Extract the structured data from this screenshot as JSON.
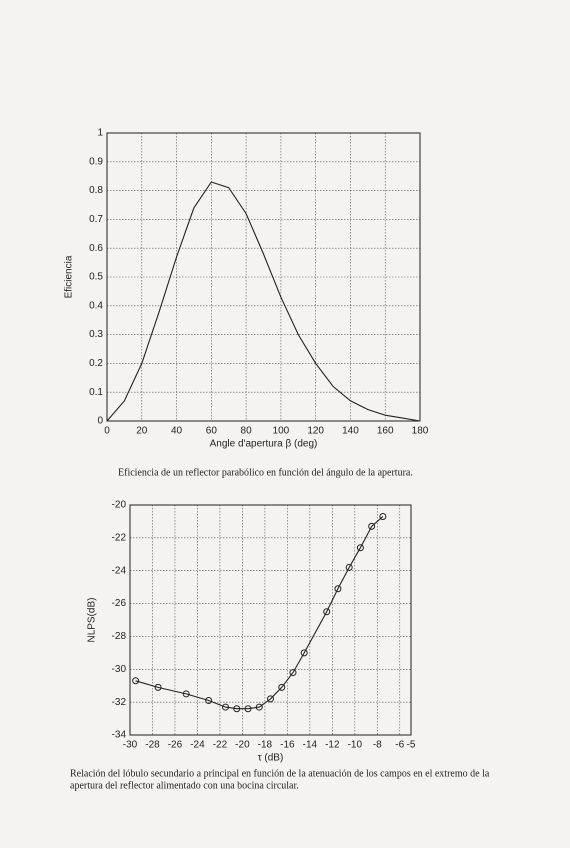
{
  "chart_data": [
    {
      "type": "line",
      "xlabel": "Angle d'apertura β (deg)",
      "ylabel": "Eficiencia",
      "x": [
        0,
        10,
        20,
        30,
        40,
        50,
        60,
        70,
        80,
        90,
        100,
        110,
        120,
        130,
        140,
        150,
        160,
        170,
        180
      ],
      "values": [
        0,
        0.07,
        0.2,
        0.38,
        0.57,
        0.74,
        0.83,
        0.81,
        0.72,
        0.58,
        0.43,
        0.3,
        0.2,
        0.12,
        0.07,
        0.04,
        0.02,
        0.01,
        0
      ],
      "color": "#222222",
      "marker": "none",
      "xlim": [
        0,
        180
      ],
      "xticks": [
        0,
        20,
        40,
        60,
        80,
        100,
        120,
        140,
        160,
        180
      ],
      "ylim": [
        0,
        1
      ],
      "yticks": [
        0,
        0.1,
        0.2,
        0.3,
        0.4,
        0.5,
        0.6,
        0.7,
        0.8,
        0.9,
        1
      ],
      "grid": true,
      "caption": [
        "Eficiencia de un reflector parabólico en función del ángulo de la apertura."
      ]
    },
    {
      "type": "line",
      "xlabel": "τ (dB)",
      "ylabel": "NLPS(dB)",
      "x": [
        -29.5,
        -27.5,
        -25,
        -23,
        -21.5,
        -20.5,
        -19.5,
        -18.5,
        -17.5,
        -16.5,
        -15.5,
        -14.5,
        -12.5,
        -11.5,
        -10.5,
        -9.5,
        -8.5,
        -7.5
      ],
      "values": [
        -30.7,
        -31.1,
        -31.5,
        -31.9,
        -32.3,
        -32.4,
        -32.4,
        -32.3,
        -31.8,
        -31.1,
        -30.2,
        -29.0,
        -26.5,
        -25.1,
        -23.8,
        -22.6,
        -21.3,
        -20.7
      ],
      "color": "#222222",
      "marker": "circle",
      "xlim": [
        -30,
        -5
      ],
      "xticks": [
        -30,
        -28,
        -26,
        -24,
        -22,
        -20,
        -18,
        -16,
        -14,
        -12,
        -10,
        -8,
        -6,
        -5
      ],
      "ylim": [
        -34,
        -20
      ],
      "yticks": [
        -34,
        -32,
        -30,
        -28,
        -26,
        -24,
        -22,
        -20
      ],
      "grid": true,
      "caption": [
        "Relación del lóbulo secundario a principal en función de la atenuación de los campos en el extremo de la",
        "apertura del reflector alimentado con una bocina circular."
      ]
    }
  ]
}
